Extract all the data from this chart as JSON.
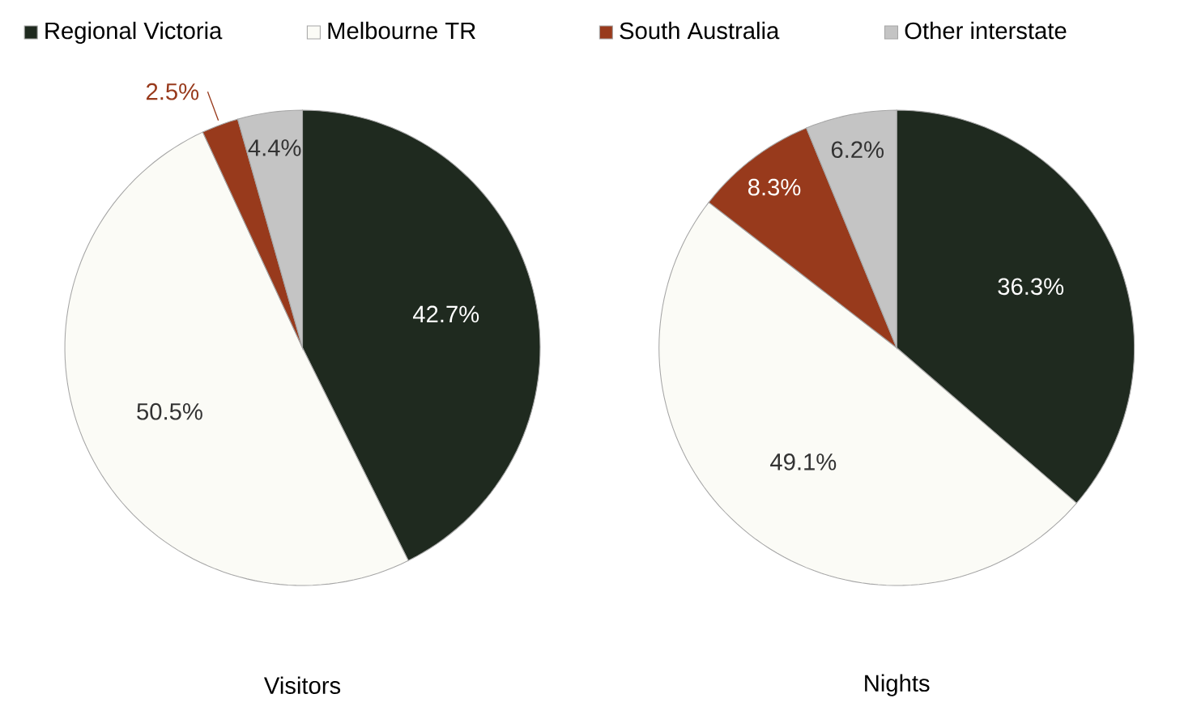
{
  "chart_data": [
    {
      "type": "pie",
      "title": "Visitors",
      "legend": "top",
      "categories": [
        "Regional Victoria",
        "Melbourne TR",
        "South Australia",
        "Other interstate"
      ],
      "values": [
        42.7,
        50.5,
        2.5,
        4.4
      ],
      "value_labels": [
        "42.7%",
        "50.5%",
        "2.5%",
        "4.4%"
      ],
      "colors": [
        "#1f2a1f",
        "#fbfbf6",
        "#983a1c",
        "#c4c4c4"
      ]
    },
    {
      "type": "pie",
      "title": "Nights",
      "categories": [
        null,
        null,
        null,
        null
      ],
      "values": [
        36.3,
        49.1,
        8.3,
        6.2
      ],
      "value_labels": [
        "36.3%",
        "49.1%",
        "8.3%",
        "6.2%"
      ],
      "colors": [
        "#1f2a1f",
        "#fbfbf6",
        "#983a1c",
        "#c4c4c4"
      ]
    }
  ]
}
